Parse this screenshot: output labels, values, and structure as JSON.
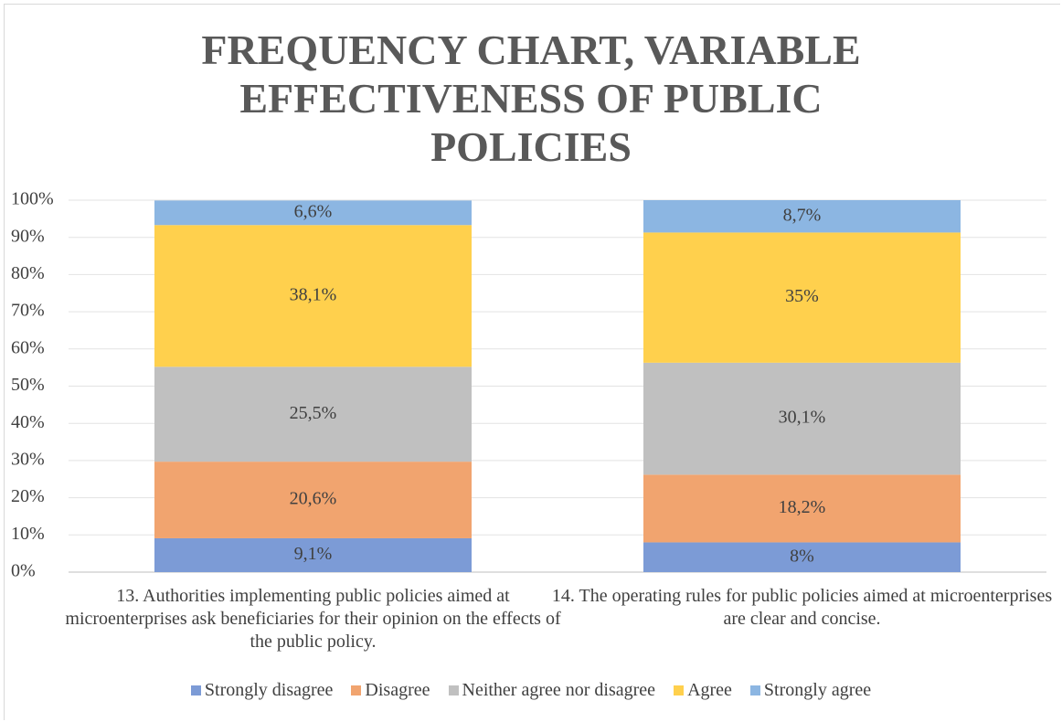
{
  "chart_data": {
    "type": "stacked_bar",
    "title": "FREQUENCY CHART, VARIABLE EFFECTIVENESS OF PUBLIC POLICIES",
    "categories": [
      "13. Authorities implementing public policies aimed at microenterprises ask beneficiaries for their opinion on the effects of the public policy.",
      "14. The operating rules for public policies aimed at microenterprises are clear and concise."
    ],
    "series": [
      {
        "name": "Strongly disagree",
        "color": "#7c9bd6",
        "values": [
          9.1,
          8
        ],
        "value_labels": [
          "9,1%",
          "8%"
        ]
      },
      {
        "name": "Disagree",
        "color": "#f1a46f",
        "values": [
          20.6,
          18.2
        ],
        "value_labels": [
          "20,6%",
          "18,2%"
        ]
      },
      {
        "name": "Neither agree nor disagree",
        "color": "#c0c0c0",
        "values": [
          25.5,
          30.1
        ],
        "value_labels": [
          "25,5%",
          "30,1%"
        ]
      },
      {
        "name": "Agree",
        "color": "#ffd04d",
        "values": [
          38.1,
          35
        ],
        "value_labels": [
          "38,1%",
          "35%"
        ]
      },
      {
        "name": "Strongly agree",
        "color": "#8cb6e2",
        "values": [
          6.6,
          8.7
        ],
        "value_labels": [
          "6,6%",
          "8,7%"
        ]
      }
    ],
    "ylim": [
      0,
      100
    ],
    "yticks": [
      {
        "value": 0,
        "label": "0%"
      },
      {
        "value": 10,
        "label": "10%"
      },
      {
        "value": 20,
        "label": "20%"
      },
      {
        "value": 30,
        "label": "30%"
      },
      {
        "value": 40,
        "label": "40%"
      },
      {
        "value": 50,
        "label": "50%"
      },
      {
        "value": 60,
        "label": "60%"
      },
      {
        "value": 70,
        "label": "70%"
      },
      {
        "value": 80,
        "label": "80%"
      },
      {
        "value": 90,
        "label": "90%"
      },
      {
        "value": 100,
        "label": "100%"
      }
    ],
    "grid": true,
    "legend": "bottom"
  }
}
